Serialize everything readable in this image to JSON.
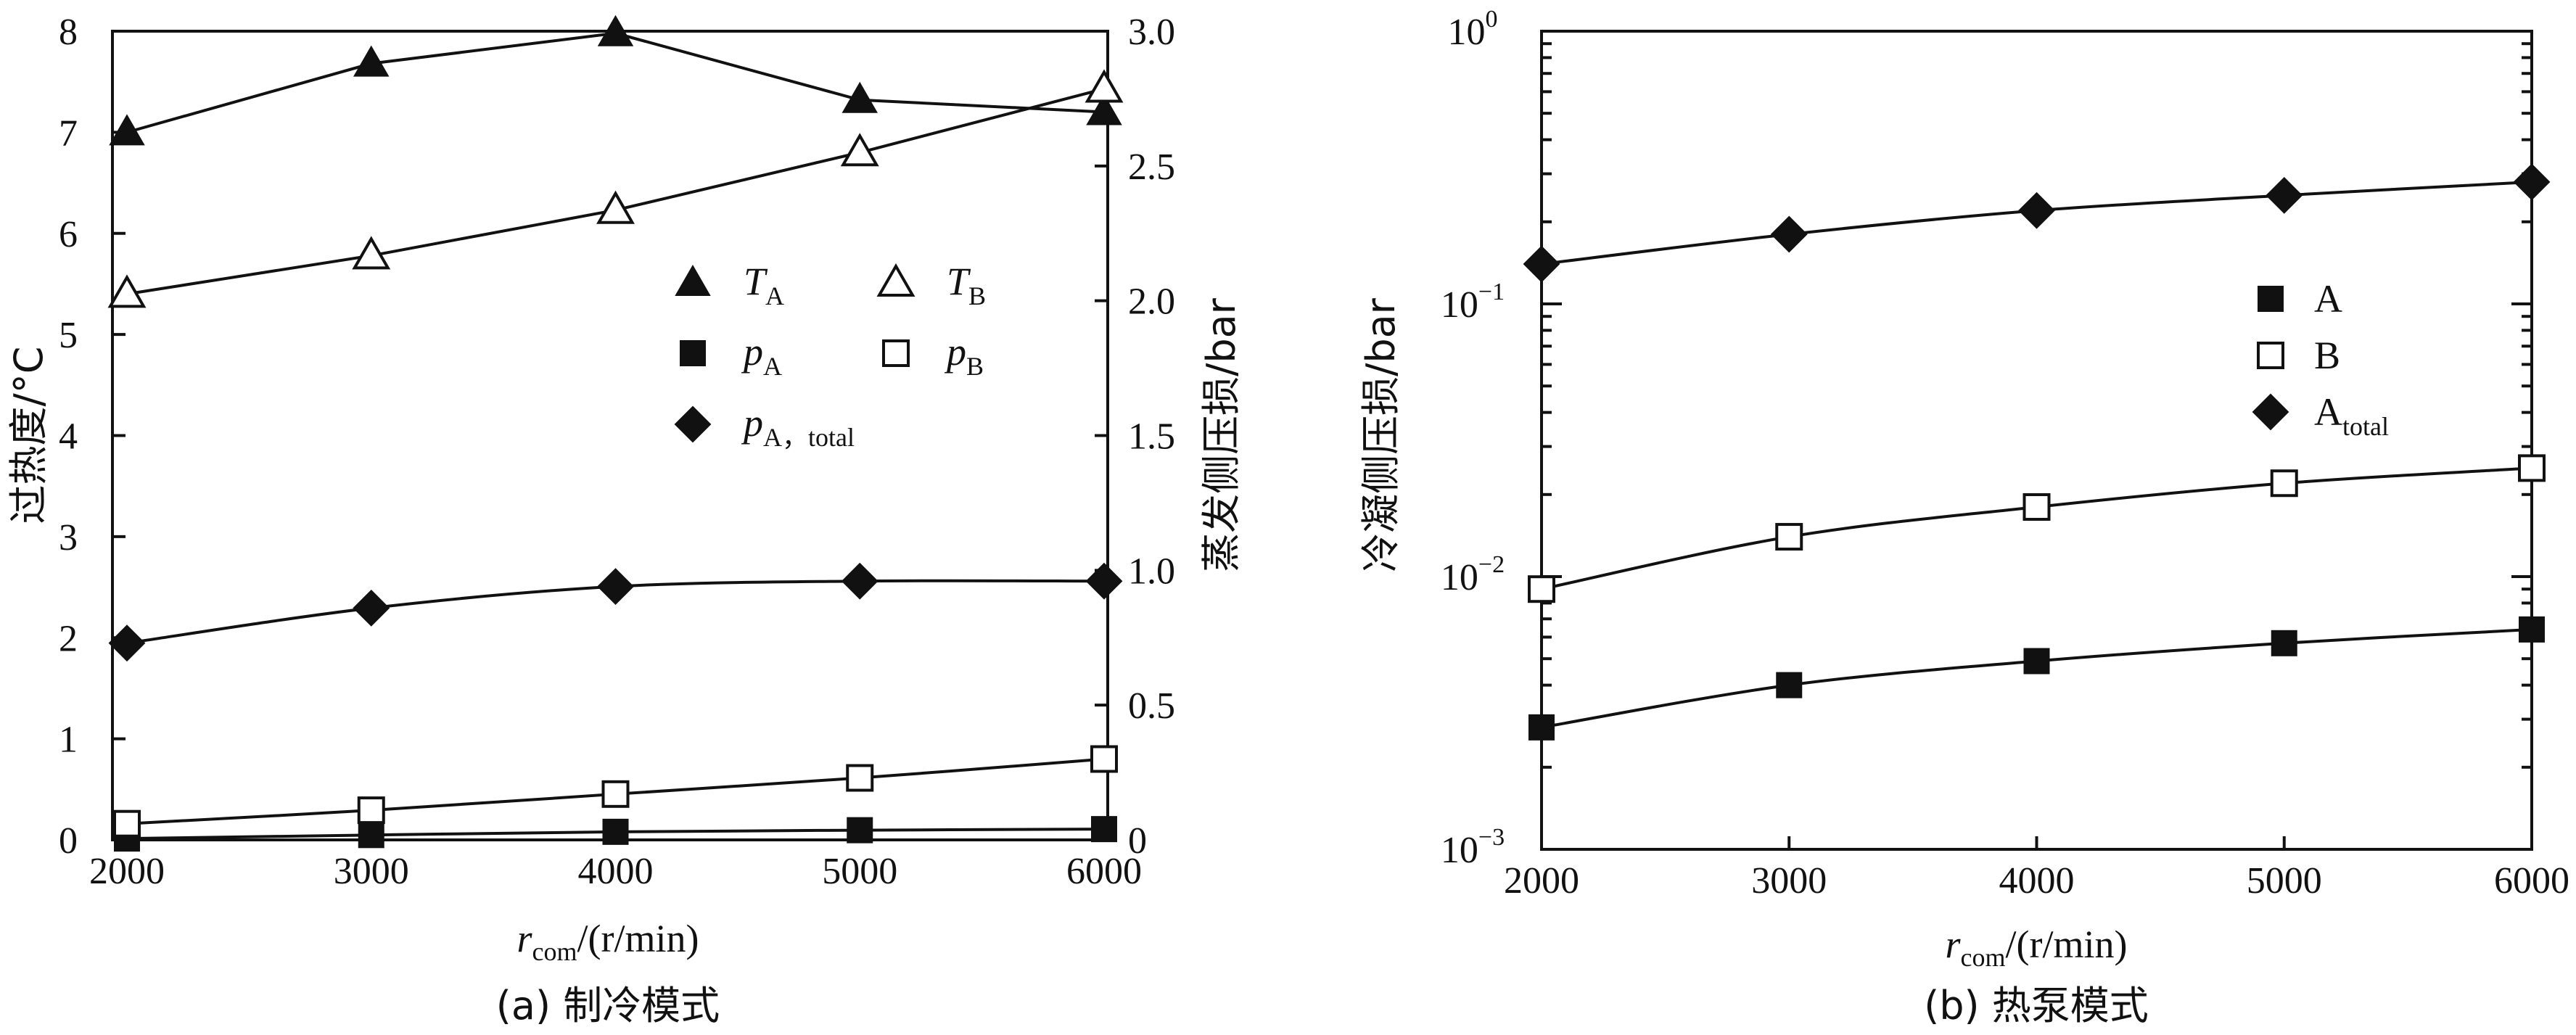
{
  "chart_data": [
    {
      "panel": "a",
      "type": "line",
      "caption": "(a) 制冷模式",
      "xlabel_main": "r",
      "xlabel_sub": "com",
      "xlabel_unit": "/(r/min)",
      "ylabel": "过热度/°C",
      "y2label": "蒸发侧压损/bar",
      "x": [
        2000,
        3000,
        4000,
        5000,
        6000
      ],
      "xlim": [
        2000,
        6000
      ],
      "xticks": [
        2000,
        3000,
        4000,
        5000,
        6000
      ],
      "xtick_labels": [
        "2000",
        "3000",
        "4000",
        "5000",
        "6000"
      ],
      "ylim": [
        0,
        8
      ],
      "yticks": [
        0,
        1,
        2,
        3,
        4,
        5,
        6,
        7,
        8
      ],
      "ytick_labels": [
        "0",
        "1",
        "2",
        "3",
        "4",
        "5",
        "6",
        "7",
        "8"
      ],
      "y2lim": [
        0,
        3.0
      ],
      "y2ticks": [
        0,
        0.5,
        1.0,
        1.5,
        2.0,
        2.5,
        3.0
      ],
      "y2tick_labels": [
        "0",
        "0.5",
        "1.0",
        "1.5",
        "2.0",
        "2.5",
        "3.0"
      ],
      "legend_position": "center",
      "series": [
        {
          "name": "T_A",
          "main": "T",
          "sub": "A",
          "axis": "left",
          "marker": "triangle-filled",
          "values": [
            7.0,
            7.68,
            7.98,
            7.32,
            7.2
          ]
        },
        {
          "name": "T_B",
          "main": "T",
          "sub": "B",
          "axis": "left",
          "marker": "triangle-open",
          "values": [
            5.4,
            5.78,
            6.23,
            6.8,
            7.43
          ]
        },
        {
          "name": "p_A",
          "main": "p",
          "sub": "A",
          "axis": "right",
          "marker": "square-filled",
          "values": [
            0.005,
            0.018,
            0.03,
            0.036,
            0.04
          ]
        },
        {
          "name": "p_B",
          "main": "p",
          "sub": "B",
          "axis": "right",
          "marker": "square-open",
          "values": [
            0.06,
            0.11,
            0.17,
            0.23,
            0.3
          ]
        },
        {
          "name": "p_A,total",
          "main": "p",
          "sub": "A，total",
          "axis": "right",
          "marker": "diamond-filled",
          "values": [
            0.73,
            0.86,
            0.94,
            0.96,
            0.96
          ]
        }
      ]
    },
    {
      "panel": "b",
      "type": "line",
      "caption": "(b) 热泵模式",
      "xlabel_main": "r",
      "xlabel_sub": "com",
      "xlabel_unit": "/(r/min)",
      "ylabel": "冷凝侧压损/bar",
      "yscale": "log",
      "x": [
        2000,
        3000,
        4000,
        5000,
        6000
      ],
      "xlim": [
        2000,
        6000
      ],
      "xticks": [
        2000,
        3000,
        4000,
        5000,
        6000
      ],
      "xtick_labels": [
        "2000",
        "3000",
        "4000",
        "5000",
        "6000"
      ],
      "ylim": [
        0.001,
        1
      ],
      "ytick_labels": [
        {
          "base": "10",
          "exp": "0"
        },
        {
          "base": "10",
          "exp": "-1"
        },
        {
          "base": "10",
          "exp": "-2"
        },
        {
          "base": "10",
          "exp": "-3"
        }
      ],
      "legend_position": "right",
      "series": [
        {
          "name": "A",
          "main": "A",
          "sub": "",
          "marker": "square-filled",
          "values": [
            0.0028,
            0.004,
            0.0049,
            0.0057,
            0.0064
          ]
        },
        {
          "name": "B",
          "main": "B",
          "sub": "",
          "marker": "square-open",
          "values": [
            0.009,
            0.014,
            0.018,
            0.022,
            0.025
          ]
        },
        {
          "name": "A_total",
          "main": "A",
          "sub": "total",
          "marker": "diamond-filled",
          "values": [
            0.14,
            0.18,
            0.22,
            0.25,
            0.28
          ]
        }
      ]
    }
  ]
}
